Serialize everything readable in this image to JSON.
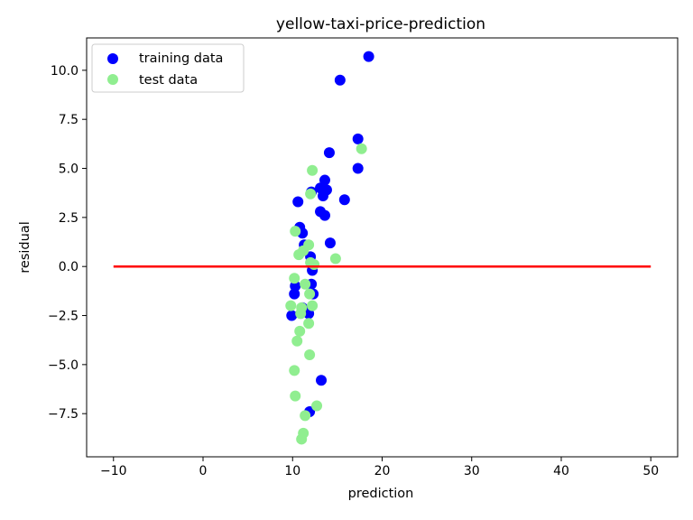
{
  "chart_data": {
    "type": "scatter",
    "title": "yellow-taxi-price-prediction",
    "xlabel": "prediction",
    "ylabel": "residual",
    "xlim": [
      -13,
      53
    ],
    "ylim": [
      -9.7,
      11.65
    ],
    "xticks": [
      -10,
      0,
      10,
      20,
      30,
      40,
      50
    ],
    "xtick_labels": [
      "−10",
      "0",
      "10",
      "20",
      "30",
      "40",
      "50"
    ],
    "yticks": [
      -7.5,
      -5.0,
      -2.5,
      0.0,
      2.5,
      5.0,
      7.5,
      10.0
    ],
    "ytick_labels": [
      "−7.5",
      "−5.0",
      "−2.5",
      "0.0",
      "2.5",
      "5.0",
      "7.5",
      "10.0"
    ],
    "legend_position": "top-left",
    "series": [
      {
        "name": "training data",
        "color": "#0000ff",
        "points": [
          [
            18.5,
            10.7
          ],
          [
            15.3,
            9.5
          ],
          [
            17.3,
            6.5
          ],
          [
            14.1,
            5.8
          ],
          [
            17.3,
            5.0
          ],
          [
            13.6,
            4.4
          ],
          [
            13.1,
            4.0
          ],
          [
            13.8,
            3.9
          ],
          [
            12.1,
            3.8
          ],
          [
            13.4,
            3.6
          ],
          [
            15.8,
            3.4
          ],
          [
            10.6,
            3.3
          ],
          [
            13.1,
            2.8
          ],
          [
            13.6,
            2.6
          ],
          [
            10.8,
            2.0
          ],
          [
            11.1,
            1.7
          ],
          [
            14.2,
            1.2
          ],
          [
            11.3,
            1.1
          ],
          [
            12.0,
            0.5
          ],
          [
            12.2,
            -0.2
          ],
          [
            10.3,
            -1.0
          ],
          [
            12.1,
            -0.9
          ],
          [
            10.2,
            -1.4
          ],
          [
            12.3,
            -1.4
          ],
          [
            11.1,
            -2.1
          ],
          [
            11.8,
            -2.4
          ],
          [
            9.9,
            -2.5
          ],
          [
            13.2,
            -5.8
          ],
          [
            11.9,
            -7.4
          ]
        ]
      },
      {
        "name": "test data",
        "color": "#90ee90",
        "points": [
          [
            17.7,
            6.0
          ],
          [
            12.2,
            4.9
          ],
          [
            12.0,
            3.7
          ],
          [
            10.3,
            1.8
          ],
          [
            11.8,
            1.1
          ],
          [
            11.2,
            0.8
          ],
          [
            10.7,
            0.6
          ],
          [
            12.0,
            0.2
          ],
          [
            12.4,
            0.1
          ],
          [
            14.8,
            0.4
          ],
          [
            10.2,
            -0.6
          ],
          [
            11.4,
            -0.9
          ],
          [
            11.9,
            -1.4
          ],
          [
            9.8,
            -2.0
          ],
          [
            11.0,
            -2.1
          ],
          [
            12.2,
            -2.0
          ],
          [
            10.9,
            -2.4
          ],
          [
            11.8,
            -2.9
          ],
          [
            10.8,
            -3.3
          ],
          [
            10.5,
            -3.8
          ],
          [
            11.9,
            -4.5
          ],
          [
            10.2,
            -5.3
          ],
          [
            10.3,
            -6.6
          ],
          [
            12.7,
            -7.1
          ],
          [
            11.4,
            -7.6
          ],
          [
            11.2,
            -8.5
          ],
          [
            11.0,
            -8.8
          ]
        ]
      }
    ],
    "reference_line": {
      "color": "#ff0000",
      "x": [
        -10,
        50
      ],
      "y": [
        0,
        0
      ]
    }
  }
}
